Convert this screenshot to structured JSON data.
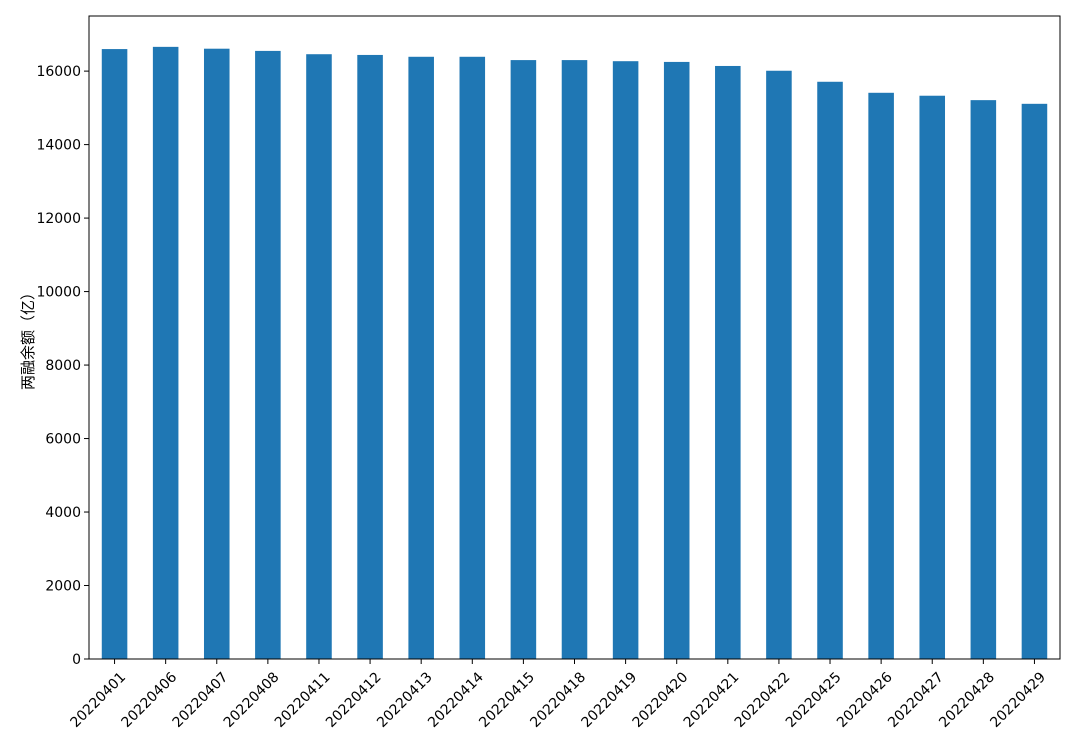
{
  "chart_data": {
    "type": "bar",
    "title": "",
    "xlabel": "",
    "ylabel": "两融余额（亿）",
    "categories": [
      "20220401",
      "20220406",
      "20220407",
      "20220408",
      "20220411",
      "20220412",
      "20220413",
      "20220414",
      "20220415",
      "20220418",
      "20220419",
      "20220420",
      "20220421",
      "20220422",
      "20220425",
      "20220426",
      "20220427",
      "20220428",
      "20220429"
    ],
    "values": [
      16600,
      16660,
      16610,
      16550,
      16460,
      16440,
      16390,
      16390,
      16300,
      16300,
      16270,
      16250,
      16140,
      16010,
      15710,
      15410,
      15330,
      15210,
      15110
    ],
    "ylim": [
      0,
      17500
    ],
    "yticks": [
      0,
      2000,
      4000,
      6000,
      8000,
      10000,
      12000,
      14000,
      16000
    ],
    "grid": false,
    "legend": "none",
    "bar_color": "#1f77b4"
  }
}
